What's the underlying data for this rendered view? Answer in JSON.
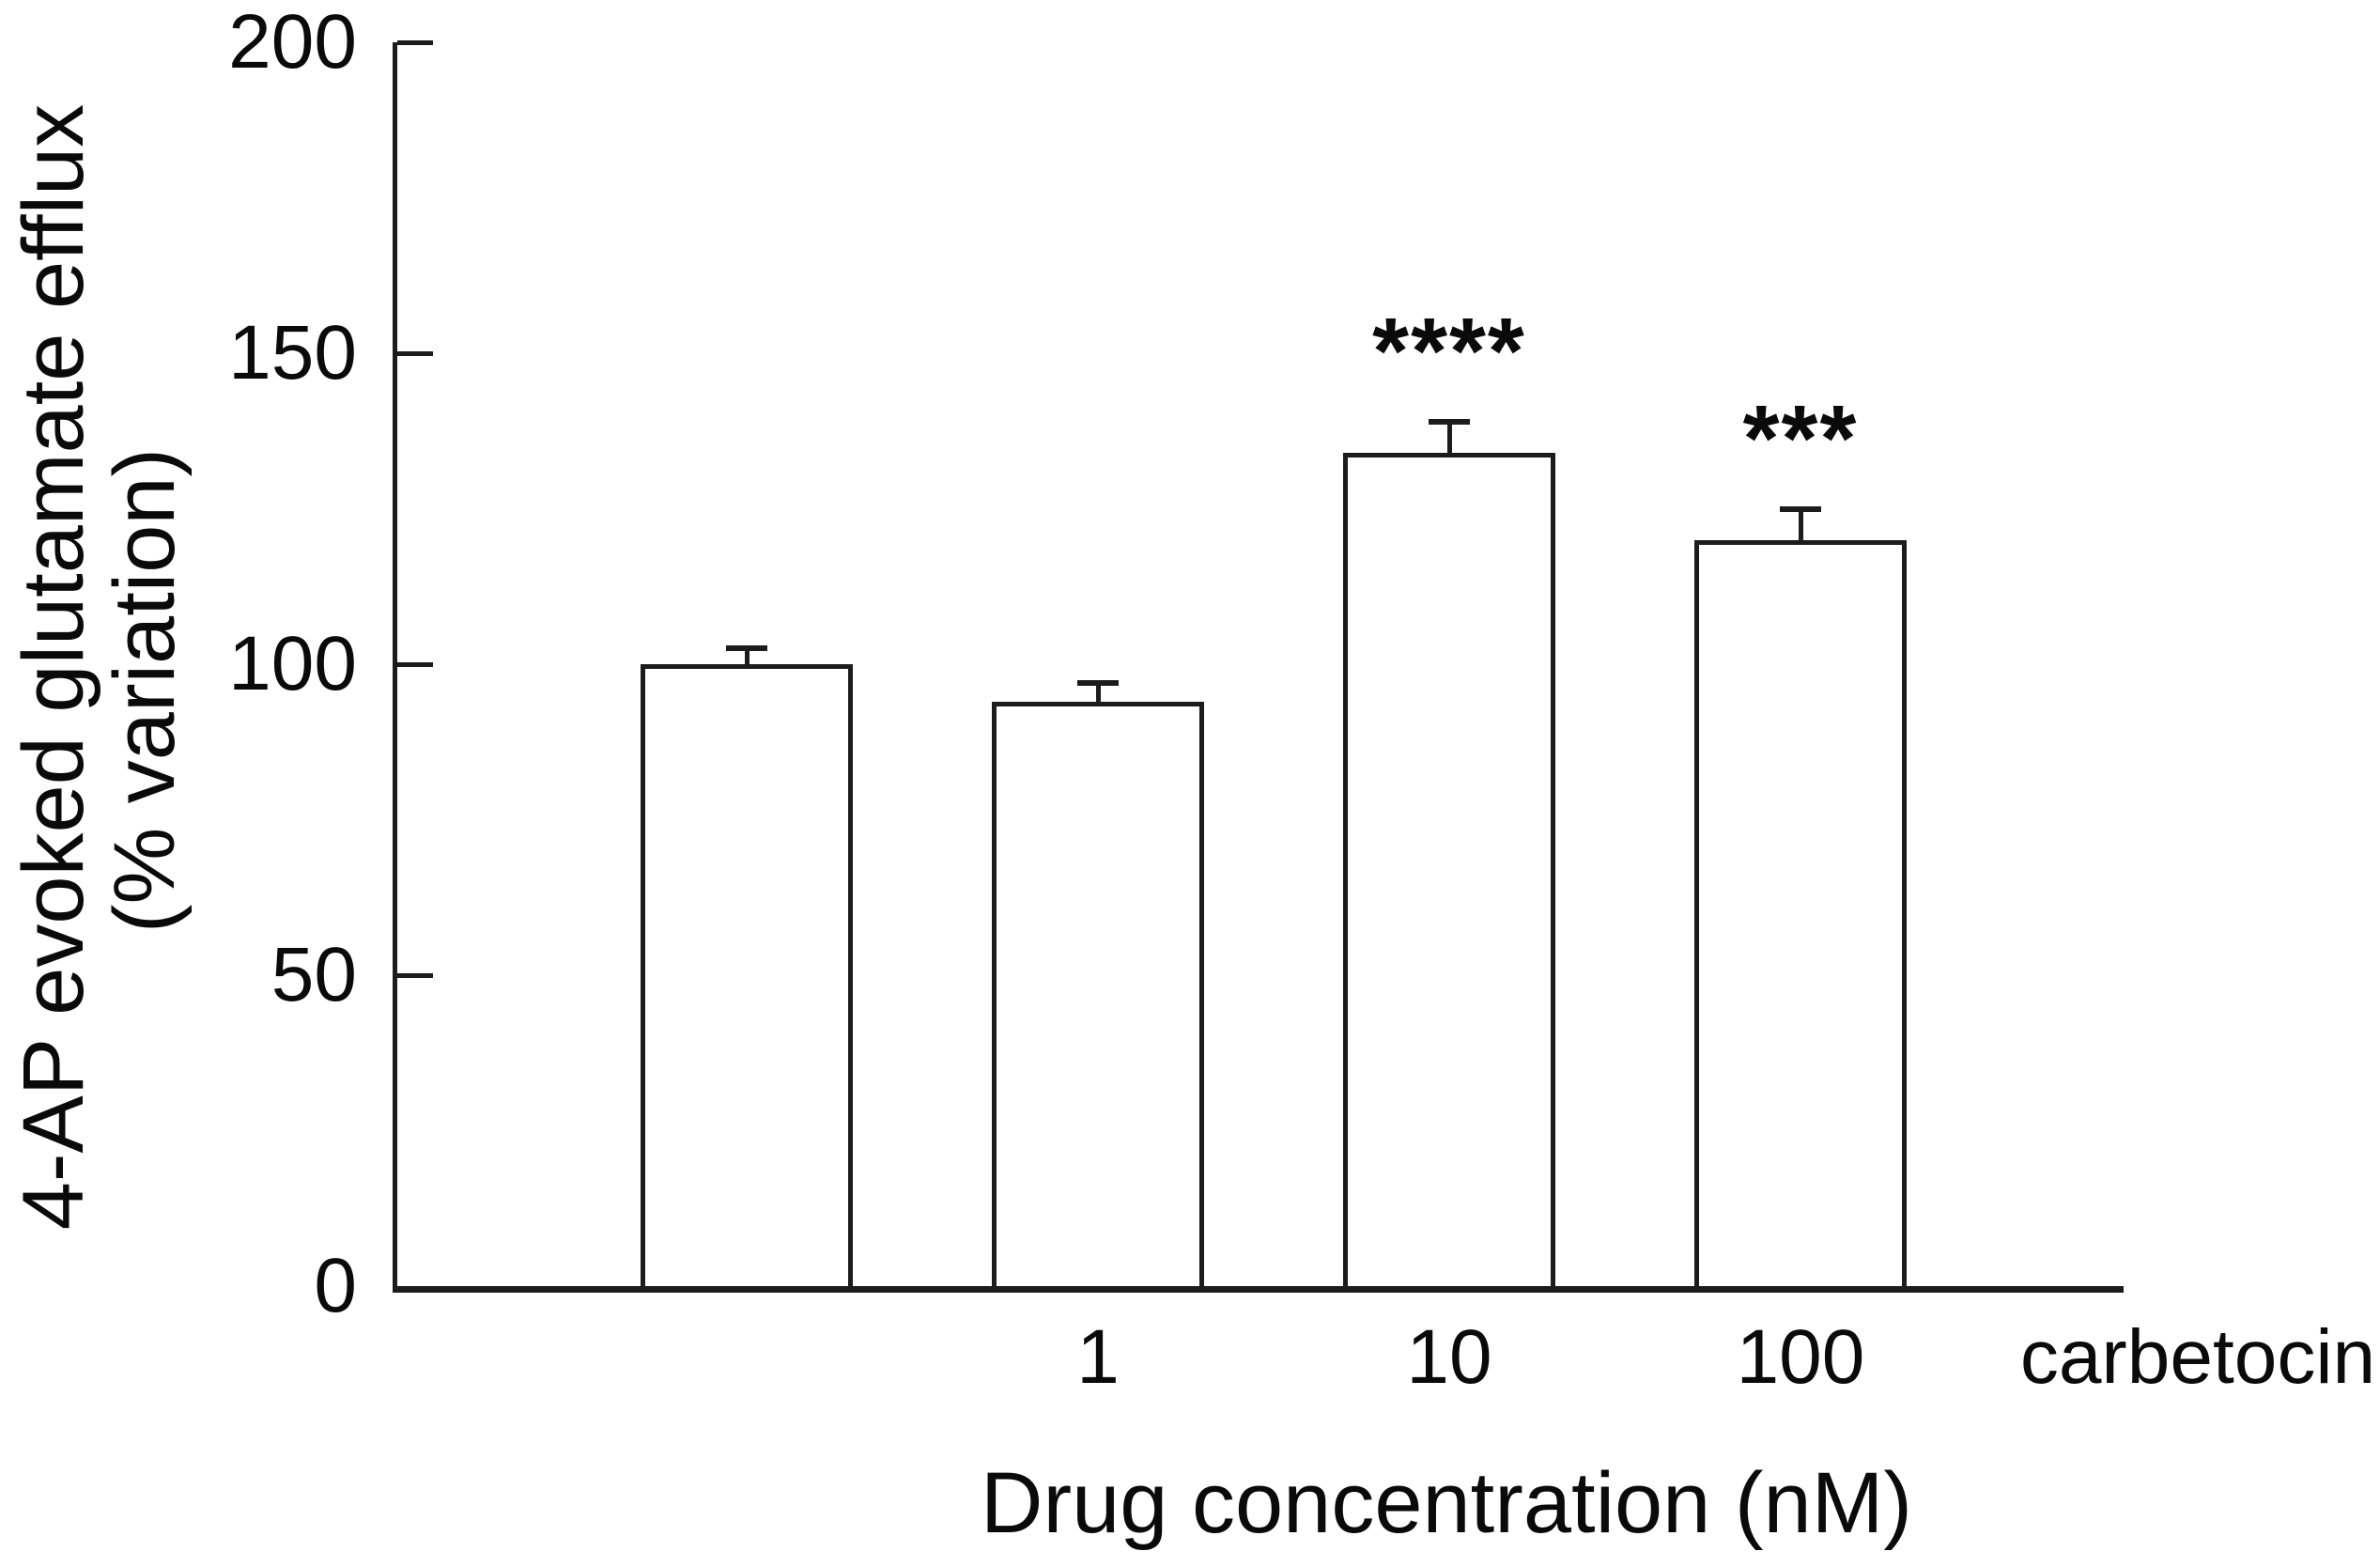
{
  "figure": {
    "background": "#ffffff",
    "line_color": "#1c1c1c",
    "text_color": "#0a0a0a"
  },
  "chart_data": {
    "type": "bar",
    "title": "",
    "categories": [
      "",
      "1",
      "10",
      "100"
    ],
    "values": [
      100,
      94,
      134,
      120
    ],
    "errors": [
      2.5,
      3,
      5,
      5
    ],
    "error_bar_direction": "upper-only",
    "significance": [
      "",
      "",
      "****",
      "***"
    ],
    "xlabel": "Drug concentration (nM)",
    "x_axis_unit_label": "carbetocin",
    "ylabel_line1": "4-AP evoked glutamate efflux",
    "ylabel_line2": "(% variation)",
    "yticks": [
      0,
      50,
      100,
      150,
      200
    ],
    "ytick_labels": [
      "0",
      "50",
      "100",
      "150",
      "200"
    ],
    "ylim": [
      0,
      200
    ],
    "bar_fill": "#ffffff",
    "bar_border": "#1c1c1c",
    "grid": false,
    "legend": "none"
  }
}
